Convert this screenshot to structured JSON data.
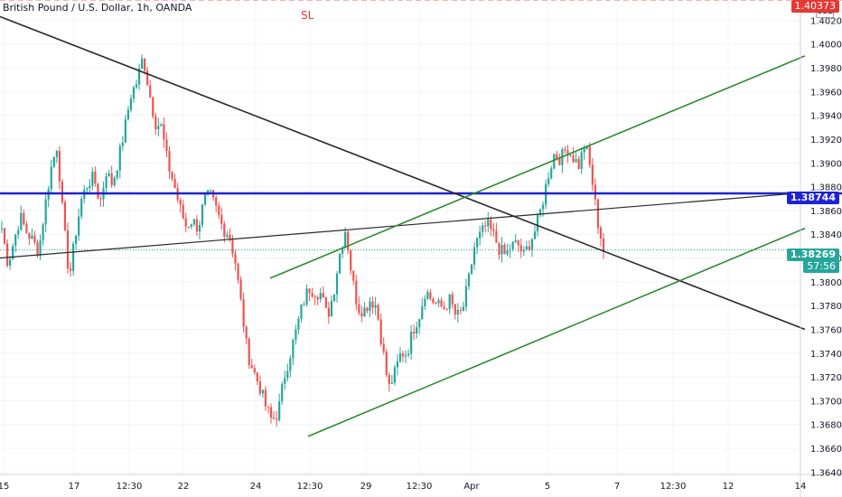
{
  "header": {
    "title": "British Pound / U.S. Dollar, 1h, OANDA",
    "currency": "USD"
  },
  "labels": {
    "sl": "SL",
    "blue_line_price": "1.38744",
    "last_price": "1.38269",
    "countdown": "57:56",
    "sl_price": "1.40373"
  },
  "colors": {
    "up": "#26a69a",
    "down": "#ef5350",
    "channel": "#2e8b2e",
    "trendline": "#2a2a2a",
    "horizontal": "#1e22d6",
    "sl": "#e53935"
  },
  "chart_data": {
    "type": "candlestick",
    "title": "British Pound / U.S. Dollar, 1h, OANDA",
    "ylim": [
      1.3638,
      1.4037
    ],
    "y_ticks": [
      "1.40200",
      "1.40000",
      "1.39800",
      "1.39600",
      "1.39400",
      "1.39200",
      "1.39000",
      "1.38800",
      "1.38600",
      "1.38400",
      "1.38200",
      "1.38000",
      "1.37800",
      "1.37600",
      "1.37400",
      "1.37200",
      "1.37000",
      "1.36800",
      "1.36600",
      "1.36400"
    ],
    "x_ticks": [
      "15",
      "17",
      "12:30",
      "22",
      "24",
      "12:30",
      "29",
      "12:30",
      "Apr",
      "5",
      "7",
      "12:30",
      "12",
      "14"
    ],
    "grid": true,
    "horizontal_lines": [
      {
        "name": "SL",
        "price": 1.40373,
        "style": "dashed"
      },
      {
        "price": 1.38744,
        "style": "solid"
      }
    ],
    "last_price_line": 1.38269,
    "key_points": [
      1.3845,
      1.3815,
      1.3835,
      1.3855,
      1.3842,
      1.3835,
      1.3825,
      1.3862,
      1.3895,
      1.3915,
      1.3852,
      1.3803,
      1.384,
      1.387,
      1.3883,
      1.3888,
      1.3866,
      1.3893,
      1.3882,
      1.3903,
      1.3928,
      1.3957,
      1.3968,
      1.399,
      1.396,
      1.3934,
      1.393,
      1.39,
      1.3883,
      1.3862,
      1.3847,
      1.3852,
      1.3845,
      1.387,
      1.3872,
      1.386,
      1.3845,
      1.384,
      1.3818,
      1.378,
      1.374,
      1.3725,
      1.3712,
      1.3695,
      1.3683,
      1.369,
      1.372,
      1.374,
      1.376,
      1.3781,
      1.3795,
      1.3792,
      1.379,
      1.377,
      1.379,
      1.3823,
      1.3845,
      1.3805,
      1.3778,
      1.3776,
      1.3785,
      1.378,
      1.3745,
      1.371,
      1.3723,
      1.374,
      1.374,
      1.376,
      1.3772,
      1.3793,
      1.3785,
      1.378,
      1.3778,
      1.3785,
      1.377,
      1.3775,
      1.38,
      1.383,
      1.384,
      1.3848,
      1.384,
      1.3828,
      1.3822,
      1.383,
      1.3832,
      1.3822,
      1.3833,
      1.3845,
      1.3865,
      1.389,
      1.3908,
      1.3903,
      1.3913,
      1.3905,
      1.3898,
      1.3917,
      1.3891,
      1.3852,
      1.3827
    ],
    "trend_lines": [
      {
        "name": "descending",
        "from": {
          "x": "15",
          "y": 1.4023
        },
        "to": {
          "x": "14",
          "y": 1.376
        }
      },
      {
        "name": "ascending",
        "from": {
          "x": "15",
          "y": 1.382
        },
        "to": {
          "x": "14",
          "y": 1.3875
        }
      },
      {
        "name": "channel-upper",
        "from": {
          "x": "12:30",
          "y": 1.3803
        },
        "to": {
          "x": "14",
          "y": 1.399
        }
      },
      {
        "name": "channel-lower",
        "from": {
          "x": "12:30",
          "y": 1.367
        },
        "to": {
          "x": "14",
          "y": 1.3845
        }
      }
    ]
  }
}
